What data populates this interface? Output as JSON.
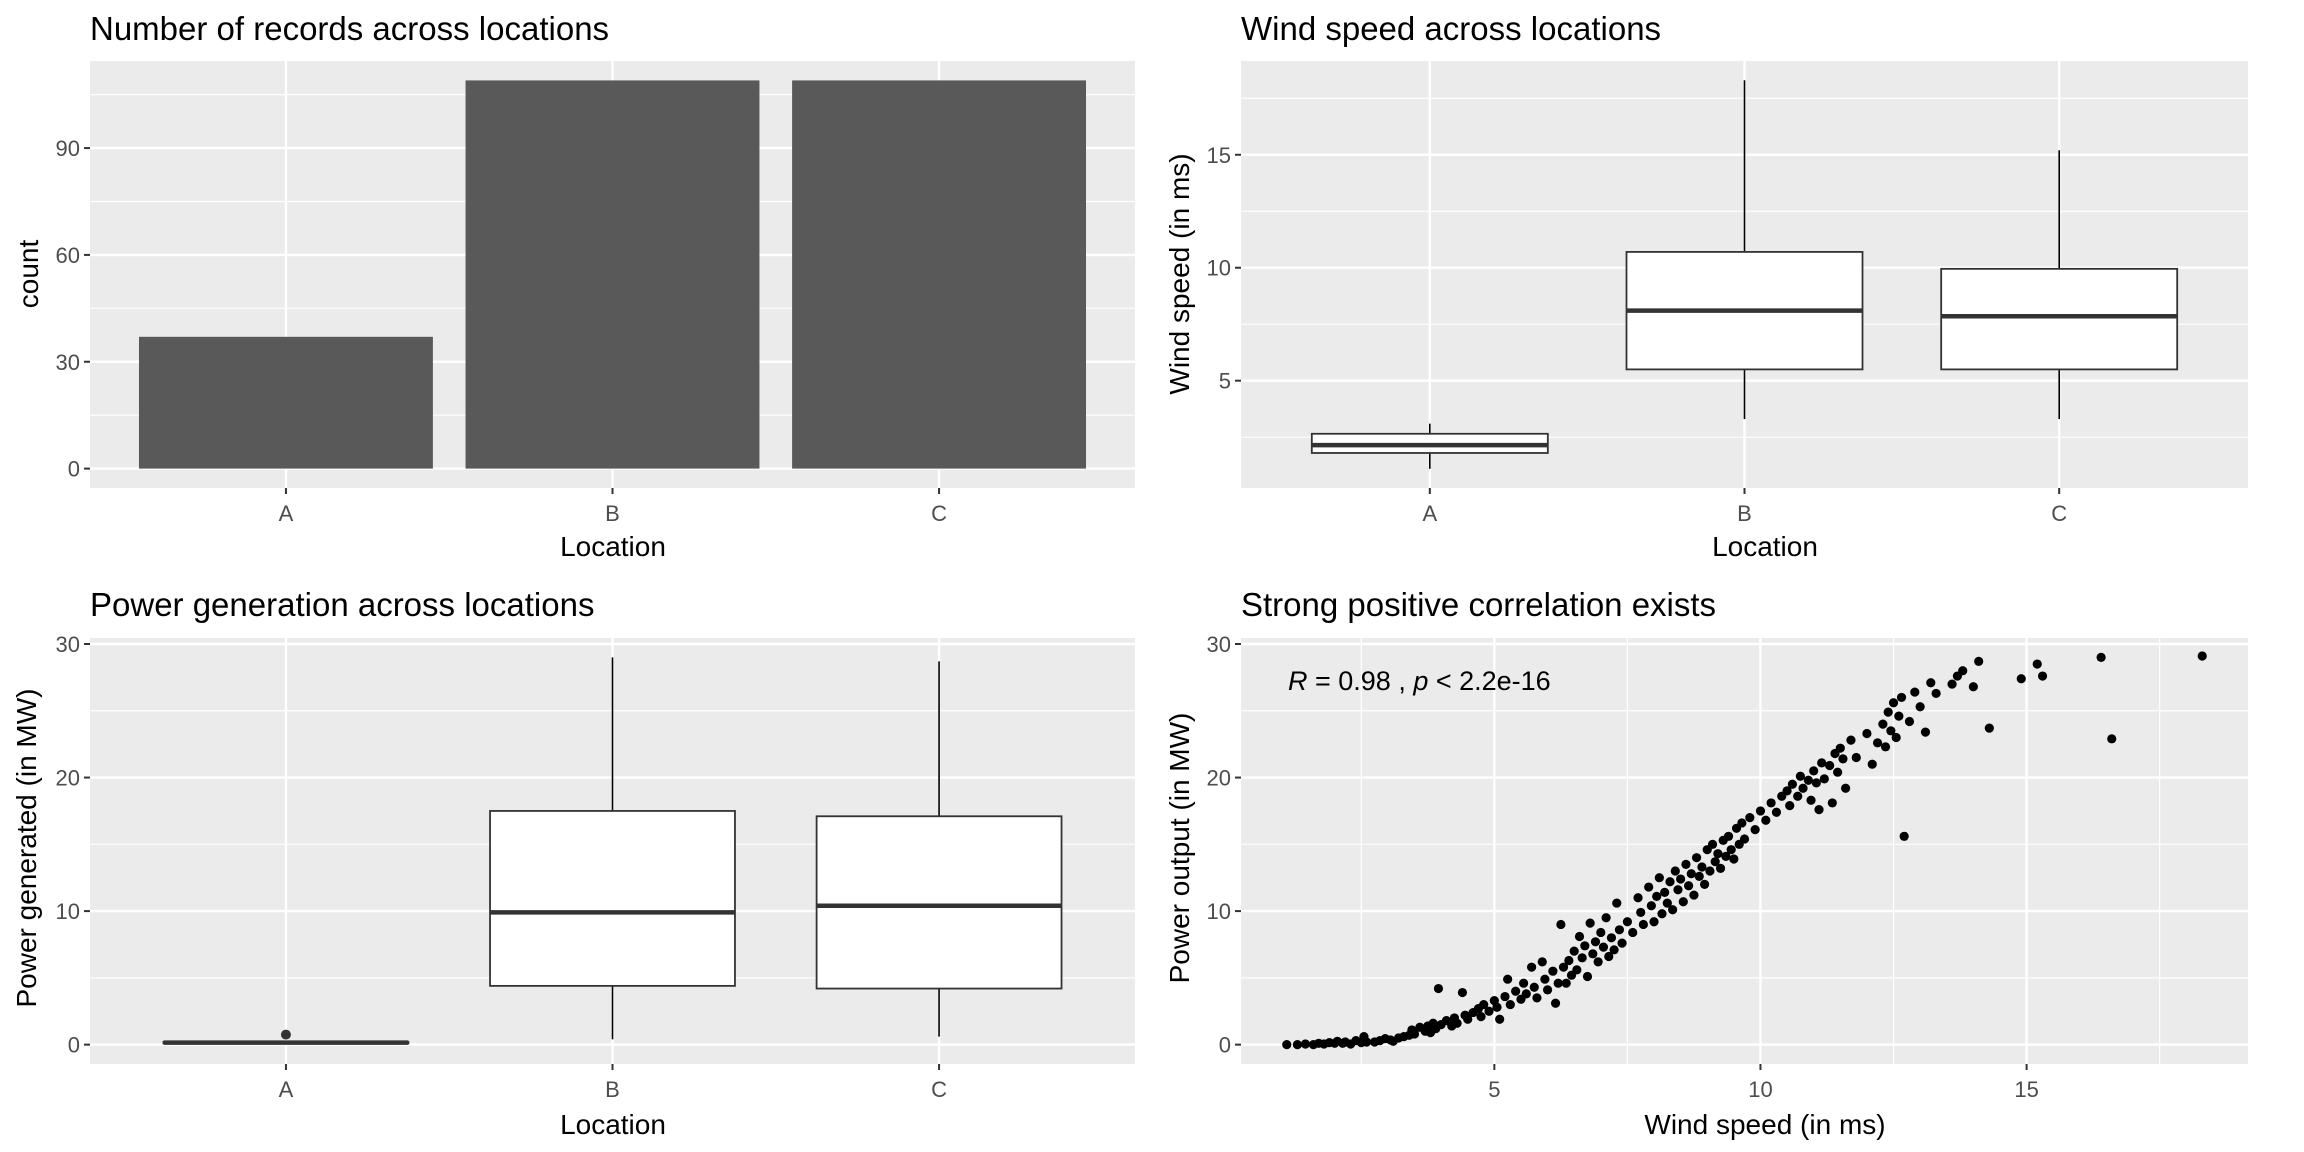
{
  "chart_data": [
    {
      "type": "bar",
      "title": "Number of records across locations",
      "xlabel": "Location",
      "ylabel": "count",
      "categories": [
        "A",
        "B",
        "C"
      ],
      "values": [
        37,
        109,
        109
      ],
      "ylim": [
        -5.45,
        114.45
      ],
      "yticks": [
        0,
        30,
        60,
        90
      ],
      "ytick_labels": [
        "0",
        "30",
        "60",
        "90"
      ],
      "bar_color": "#595959",
      "panel_color": "#ebebeb",
      "grid": true
    },
    {
      "type": "box",
      "title": "Wind speed across locations",
      "xlabel": "Location",
      "ylabel": "Wind speed (in ms)",
      "categories": [
        "A",
        "B",
        "C"
      ],
      "boxes": [
        {
          "whisker_low": 1.1,
          "q1": 1.8,
          "median": 2.15,
          "q3": 2.65,
          "whisker_high": 3.1
        },
        {
          "whisker_low": 3.3,
          "q1": 5.5,
          "median": 8.1,
          "q3": 10.7,
          "whisker_high": 18.3
        },
        {
          "whisker_low": 3.3,
          "q1": 5.5,
          "median": 7.85,
          "q3": 9.95,
          "whisker_high": 15.2
        }
      ],
      "ylim": [
        0.25,
        19.15
      ],
      "yticks": [
        5,
        10,
        15
      ],
      "ytick_labels": [
        "5",
        "10",
        "15"
      ],
      "panel_color": "#ebebeb",
      "grid": true
    },
    {
      "type": "box",
      "title": "Power generation across locations",
      "xlabel": "Location",
      "ylabel": "Power generated (in MW)",
      "categories": [
        "A",
        "B",
        "C"
      ],
      "boxes": [
        {
          "whisker_low": 0.1,
          "q1": 0.1,
          "median": 0.15,
          "q3": 0.2,
          "whisker_high": 0.25,
          "outliers": [
            0.75
          ]
        },
        {
          "whisker_low": 0.4,
          "q1": 4.4,
          "median": 9.9,
          "q3": 17.5,
          "whisker_high": 29.0
        },
        {
          "whisker_low": 0.6,
          "q1": 4.2,
          "median": 10.4,
          "q3": 17.1,
          "whisker_high": 28.7
        }
      ],
      "ylim": [
        -1.45,
        30.45
      ],
      "yticks": [
        0,
        10,
        20,
        30
      ],
      "ytick_labels": [
        "0",
        "10",
        "20",
        "30"
      ],
      "panel_color": "#ebebeb",
      "grid": true
    },
    {
      "type": "scatter",
      "title": "Strong positive correlation exists",
      "xlabel": "Wind speed (in ms)",
      "ylabel": "Power output (in MW)",
      "annotation": {
        "r_symbol": "R",
        "r_text": " = 0.98 , ",
        "p_symbol": "p",
        "p_text": " < 2.2e-16"
      },
      "xlim": [
        0.24,
        19.16
      ],
      "ylim": [
        -1.45,
        30.45
      ],
      "xticks": [
        5,
        10,
        15
      ],
      "xtick_labels": [
        "5",
        "10",
        "15"
      ],
      "yticks": [
        0,
        10,
        20,
        30
      ],
      "ytick_labels": [
        "0",
        "10",
        "20",
        "30"
      ],
      "point_color": "#000000",
      "panel_color": "#ebebeb",
      "grid": true,
      "points": [
        [
          1.1,
          0.0
        ],
        [
          1.3,
          0.0
        ],
        [
          1.45,
          0.05
        ],
        [
          1.6,
          0.0
        ],
        [
          1.7,
          0.1
        ],
        [
          1.8,
          0.05
        ],
        [
          1.9,
          0.15
        ],
        [
          2.0,
          0.1
        ],
        [
          2.05,
          0.25
        ],
        [
          2.15,
          0.1
        ],
        [
          2.2,
          0.2
        ],
        [
          2.3,
          0.05
        ],
        [
          2.4,
          0.3
        ],
        [
          2.5,
          0.15
        ],
        [
          2.55,
          0.6
        ],
        [
          2.6,
          0.2
        ],
        [
          2.75,
          0.2
        ],
        [
          2.85,
          0.3
        ],
        [
          2.95,
          0.45
        ],
        [
          3.05,
          0.35
        ],
        [
          3.1,
          0.25
        ],
        [
          3.2,
          0.5
        ],
        [
          3.3,
          0.6
        ],
        [
          3.4,
          0.7
        ],
        [
          3.45,
          1.1
        ],
        [
          3.5,
          0.8
        ],
        [
          3.6,
          1.3
        ],
        [
          3.7,
          1.0
        ],
        [
          3.75,
          1.4
        ],
        [
          3.8,
          0.9
        ],
        [
          3.85,
          1.6
        ],
        [
          3.9,
          1.2
        ],
        [
          3.95,
          4.2
        ],
        [
          4.0,
          1.5
        ],
        [
          4.1,
          1.8
        ],
        [
          4.2,
          1.4
        ],
        [
          4.25,
          2.0
        ],
        [
          4.3,
          1.6
        ],
        [
          4.4,
          3.9
        ],
        [
          4.45,
          2.2
        ],
        [
          4.5,
          1.9
        ],
        [
          4.6,
          2.4
        ],
        [
          4.7,
          2.7
        ],
        [
          4.75,
          2.1
        ],
        [
          4.8,
          3.0
        ],
        [
          4.9,
          2.5
        ],
        [
          5.0,
          3.3
        ],
        [
          5.05,
          2.8
        ],
        [
          5.1,
          1.9
        ],
        [
          5.2,
          3.6
        ],
        [
          5.25,
          4.9
        ],
        [
          5.3,
          3.0
        ],
        [
          5.4,
          4.0
        ],
        [
          5.5,
          3.4
        ],
        [
          5.55,
          4.6
        ],
        [
          5.6,
          3.8
        ],
        [
          5.7,
          5.8
        ],
        [
          5.75,
          4.3
        ],
        [
          5.8,
          3.5
        ],
        [
          5.9,
          6.2
        ],
        [
          5.95,
          4.9
        ],
        [
          6.0,
          4.1
        ],
        [
          6.1,
          5.5
        ],
        [
          6.15,
          3.1
        ],
        [
          6.2,
          4.6
        ],
        [
          6.25,
          9.0
        ],
        [
          6.3,
          5.8
        ],
        [
          6.35,
          4.6
        ],
        [
          6.4,
          6.3
        ],
        [
          6.45,
          5.2
        ],
        [
          6.5,
          7.0
        ],
        [
          6.55,
          5.6
        ],
        [
          6.6,
          8.1
        ],
        [
          6.65,
          6.5
        ],
        [
          6.7,
          7.4
        ],
        [
          6.75,
          5.1
        ],
        [
          6.8,
          9.1
        ],
        [
          6.85,
          6.8
        ],
        [
          6.9,
          7.7
        ],
        [
          6.95,
          6.2
        ],
        [
          7.0,
          8.4
        ],
        [
          7.05,
          7.3
        ],
        [
          7.1,
          9.5
        ],
        [
          7.15,
          6.6
        ],
        [
          7.2,
          8.0
        ],
        [
          7.25,
          7.1
        ],
        [
          7.3,
          10.6
        ],
        [
          7.35,
          8.6
        ],
        [
          7.4,
          7.6
        ],
        [
          7.5,
          9.2
        ],
        [
          7.6,
          8.4
        ],
        [
          7.7,
          11.0
        ],
        [
          7.75,
          9.9
        ],
        [
          7.8,
          9.0
        ],
        [
          7.9,
          11.8
        ],
        [
          7.95,
          10.4
        ],
        [
          8.0,
          9.2
        ],
        [
          8.05,
          11.1
        ],
        [
          8.1,
          12.5
        ],
        [
          8.15,
          9.8
        ],
        [
          8.2,
          11.4
        ],
        [
          8.25,
          10.6
        ],
        [
          8.3,
          12.2
        ],
        [
          8.35,
          10.1
        ],
        [
          8.4,
          13.0
        ],
        [
          8.45,
          11.6
        ],
        [
          8.5,
          12.4
        ],
        [
          8.55,
          10.7
        ],
        [
          8.6,
          13.5
        ],
        [
          8.65,
          11.9
        ],
        [
          8.7,
          12.8
        ],
        [
          8.75,
          11.2
        ],
        [
          8.8,
          14.0
        ],
        [
          8.85,
          12.6
        ],
        [
          8.9,
          13.3
        ],
        [
          8.95,
          12.0
        ],
        [
          9.0,
          14.6
        ],
        [
          9.05,
          13.0
        ],
        [
          9.1,
          15.0
        ],
        [
          9.15,
          13.7
        ],
        [
          9.2,
          14.3
        ],
        [
          9.25,
          13.2
        ],
        [
          9.3,
          15.3
        ],
        [
          9.35,
          14.1
        ],
        [
          9.4,
          15.6
        ],
        [
          9.45,
          14.6
        ],
        [
          9.5,
          13.9
        ],
        [
          9.55,
          16.2
        ],
        [
          9.6,
          15.0
        ],
        [
          9.65,
          16.6
        ],
        [
          9.7,
          15.4
        ],
        [
          9.8,
          17.0
        ],
        [
          9.9,
          16.1
        ],
        [
          10.0,
          17.5
        ],
        [
          10.1,
          16.8
        ],
        [
          10.2,
          18.1
        ],
        [
          10.3,
          17.4
        ],
        [
          10.4,
          18.6
        ],
        [
          10.5,
          19.0
        ],
        [
          10.55,
          17.9
        ],
        [
          10.6,
          19.5
        ],
        [
          10.7,
          18.6
        ],
        [
          10.75,
          20.1
        ],
        [
          10.8,
          19.2
        ],
        [
          10.9,
          19.8
        ],
        [
          10.95,
          18.3
        ],
        [
          11.0,
          20.5
        ],
        [
          11.05,
          19.6
        ],
        [
          11.1,
          17.6
        ],
        [
          11.15,
          21.1
        ],
        [
          11.2,
          19.9
        ],
        [
          11.3,
          20.9
        ],
        [
          11.35,
          18.1
        ],
        [
          11.4,
          21.8
        ],
        [
          11.45,
          20.4
        ],
        [
          11.5,
          22.2
        ],
        [
          11.55,
          21.4
        ],
        [
          11.6,
          19.2
        ],
        [
          11.7,
          22.8
        ],
        [
          11.8,
          21.5
        ],
        [
          12.0,
          23.3
        ],
        [
          12.1,
          21.0
        ],
        [
          12.2,
          22.6
        ],
        [
          12.3,
          24.0
        ],
        [
          12.35,
          22.3
        ],
        [
          12.4,
          24.9
        ],
        [
          12.45,
          23.5
        ],
        [
          12.5,
          25.6
        ],
        [
          12.55,
          23.0
        ],
        [
          12.6,
          24.6
        ],
        [
          12.65,
          26.0
        ],
        [
          12.7,
          15.6
        ],
        [
          12.8,
          24.2
        ],
        [
          12.9,
          26.4
        ],
        [
          13.0,
          25.3
        ],
        [
          13.1,
          23.4
        ],
        [
          13.2,
          27.1
        ],
        [
          13.3,
          26.3
        ],
        [
          13.6,
          27.0
        ],
        [
          13.7,
          27.6
        ],
        [
          13.8,
          28.0
        ],
        [
          14.0,
          26.8
        ],
        [
          14.1,
          28.7
        ],
        [
          14.3,
          23.7
        ],
        [
          14.9,
          27.4
        ],
        [
          15.2,
          28.5
        ],
        [
          15.3,
          27.6
        ],
        [
          16.4,
          29.0
        ],
        [
          16.6,
          22.9
        ],
        [
          18.3,
          29.1
        ]
      ]
    }
  ]
}
